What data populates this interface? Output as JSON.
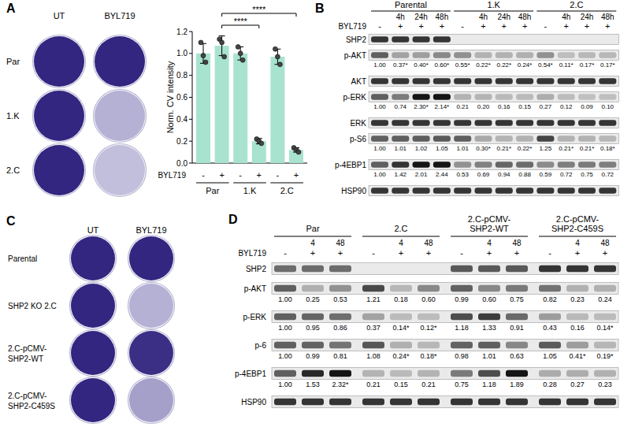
{
  "chart_data": {
    "type": "bar",
    "ylabel": "Norm. CV intensity",
    "xlabel": "BYL719",
    "categories": [
      "-",
      "+",
      "-",
      "+",
      "-",
      "+"
    ],
    "groups": [
      "Par",
      "1.K",
      "2.C"
    ],
    "values": [
      1.0,
      1.07,
      1.0,
      0.2,
      0.97,
      0.12
    ],
    "errors": [
      0.09,
      0.09,
      0.06,
      0.025,
      0.07,
      0.02
    ],
    "points": [
      [
        1.1,
        0.98,
        0.92
      ],
      [
        1.13,
        1.1,
        0.97
      ],
      [
        1.06,
        1.0,
        0.94
      ],
      [
        0.22,
        0.2,
        0.18
      ],
      [
        1.04,
        0.97,
        0.9
      ],
      [
        0.14,
        0.12,
        0.1
      ]
    ],
    "color": "#a8e3cf",
    "ylim": [
      0,
      1.2
    ],
    "yticks": [
      {
        "value": 0,
        "label": "0.0"
      },
      0.2,
      0.4,
      0.6,
      0.8,
      {
        "value": 1,
        "label": "1.0"
      },
      1.2
    ],
    "comparisons": [
      {
        "text": "****",
        "between": [
          1,
          3
        ]
      },
      {
        "text": "****",
        "between": [
          1,
          5
        ]
      }
    ]
  },
  "panels": {
    "A": {
      "label": "A",
      "columns": [
        "UT",
        "BYL719"
      ],
      "rows": [
        "Par",
        "1.K",
        "2.C"
      ],
      "cv_stain": [
        [
          1,
          1
        ],
        [
          1,
          0.2
        ],
        [
          1,
          0.12
        ]
      ]
    },
    "B": {
      "label": "B",
      "treatment": "BYL719",
      "groups": [
        {
          "name": [
            "Parental"
          ],
          "times": [
            null,
            "4h",
            "24h",
            "48h"
          ],
          "byl719": [
            "-",
            "+",
            "+",
            "+"
          ]
        },
        {
          "name": [
            "1.K"
          ],
          "times": [
            null,
            "4h",
            "24h",
            "48h"
          ],
          "byl719": [
            "-",
            "+",
            "+",
            "+"
          ]
        },
        {
          "name": [
            "2.C"
          ],
          "times": [
            null,
            "4h",
            "24h",
            "48h"
          ],
          "byl719": [
            "-",
            "+",
            "+",
            "+"
          ]
        }
      ],
      "rows": [
        {
          "name": "SHP2",
          "band_intensity": [
            1,
            1,
            1,
            1,
            0,
            0,
            0,
            0,
            0,
            0,
            0,
            0
          ]
        },
        {
          "name": "p-AKT",
          "values": [
            1.0,
            0.37,
            0.4,
            0.6,
            0.55,
            0.22,
            0.22,
            0.24,
            0.54,
            0.11,
            0.17,
            0.17
          ],
          "labels": [
            "1.00",
            "0.37*",
            "0.40*",
            "0.60*",
            "0.55*",
            "0.22*",
            "0.22*",
            "0.24*",
            "0.54*",
            "0.11*",
            "0.17*",
            "0.17*"
          ]
        },
        {
          "name": "AKT",
          "band_intensity": [
            1,
            1,
            1,
            1,
            1,
            1,
            1,
            1,
            1,
            1,
            1,
            1
          ]
        },
        {
          "name": "p-ERK",
          "values": [
            1.0,
            0.74,
            2.3,
            2.14,
            0.21,
            0.2,
            0.16,
            0.15,
            0.27,
            0.12,
            0.09,
            0.1
          ],
          "labels": [
            "1.00",
            "0.74",
            "2.30*",
            "2.14*",
            "0.21",
            "0.20",
            "0.16",
            "0.15",
            "0.27",
            "0.12",
            "0.09",
            "0.10"
          ]
        },
        {
          "name": "ERK",
          "band_intensity": [
            1,
            1,
            1,
            1,
            1,
            1,
            1,
            1,
            1,
            1,
            1,
            1
          ]
        },
        {
          "name": "p-S6",
          "values": [
            1.0,
            1.01,
            1.02,
            1.05,
            1.01,
            0.3,
            0.21,
            0.22,
            1.25,
            0.21,
            0.21,
            0.18
          ],
          "labels": [
            "1.00",
            "1.01",
            "1.02",
            "1.05",
            "1.01",
            "0.30*",
            "0.21*",
            "0.22*",
            "1.25",
            "0.21*",
            "0.21*",
            "0.18*"
          ]
        },
        {
          "name": "p-4EBP1",
          "values": [
            1.0,
            1.42,
            2.01,
            2.44,
            0.53,
            0.69,
            0.94,
            0.88,
            0.59,
            0.72,
            0.75,
            0.72
          ],
          "labels": [
            "1.00",
            "1.42",
            "2.01",
            "2.44",
            "0.53",
            "0.69",
            "0.94",
            "0.88",
            "0.59",
            "0.72",
            "0.75",
            "0.72"
          ]
        },
        {
          "name": "HSP90",
          "band_intensity": [
            1,
            1,
            1,
            1,
            1,
            1,
            1,
            1,
            1,
            1,
            1,
            1
          ]
        }
      ]
    },
    "C": {
      "label": "C",
      "columns": [
        "UT",
        "BYL719"
      ],
      "rows": [
        [
          "Parental"
        ],
        [
          "SHP2 KO 2.C"
        ],
        [
          "2.C-pCMV-",
          "SHP2-WT"
        ],
        [
          "2.C-pCMV-",
          "SHP2-C459S"
        ]
      ],
      "cv_stain": [
        [
          1,
          1
        ],
        [
          1,
          0.2
        ],
        [
          1,
          0.95
        ],
        [
          1,
          0.3
        ]
      ]
    },
    "D": {
      "label": "D",
      "treatment": "BYL719",
      "groups": [
        {
          "name": [
            "Par"
          ],
          "times": [
            null,
            "4",
            "48"
          ],
          "byl719": [
            "-",
            "+",
            "+"
          ]
        },
        {
          "name": [
            "2.C"
          ],
          "times": [
            null,
            "4",
            "48"
          ],
          "byl719": [
            "-",
            "+",
            "+"
          ]
        },
        {
          "name": [
            "2.C-pCMV-",
            "SHP2-WT"
          ],
          "times": [
            null,
            "4",
            "48"
          ],
          "byl719": [
            "-",
            "+",
            "+"
          ]
        },
        {
          "name": [
            "2.C-pCMV-",
            "SHP2-C459S"
          ],
          "times": [
            null,
            "4",
            "48"
          ],
          "byl719": [
            "-",
            "+",
            "+"
          ]
        }
      ],
      "rows": [
        {
          "name": "SHP2",
          "band_intensity": [
            0.7,
            0.7,
            0.7,
            0,
            0,
            0,
            0.8,
            0.8,
            0.8,
            1,
            1,
            1
          ]
        },
        {
          "name": "p-AKT",
          "values": [
            1.0,
            0.25,
            0.53,
            1.21,
            0.18,
            0.6,
            0.99,
            0.6,
            0.75,
            0.82,
            0.23,
            0.24
          ],
          "labels": [
            "1.00",
            "0.25",
            "0.53",
            "1.21",
            "0.18",
            "0.60",
            "0.99",
            "0.60",
            "0.75",
            "0.82",
            "0.23",
            "0.24"
          ]
        },
        {
          "name": "p-ERK",
          "values": [
            1.0,
            0.95,
            0.86,
            0.37,
            0.14,
            0.12,
            1.18,
            1.33,
            0.91,
            0.43,
            0.16,
            0.14
          ],
          "labels": [
            "1.00",
            "0.95",
            "0.86",
            "0.37",
            "0.14*",
            "0.12*",
            "1.18",
            "1.33",
            "0.91",
            "0.43",
            "0.16",
            "0.14*"
          ]
        },
        {
          "name": "p-6",
          "values": [
            1.0,
            0.99,
            0.81,
            1.08,
            0.24,
            0.18,
            0.98,
            1.01,
            0.63,
            1.05,
            0.41,
            0.19
          ],
          "labels": [
            "1.00",
            "0.99",
            "0.81",
            "1.08",
            "0.24*",
            "0.18*",
            "0.98",
            "1.01",
            "0.63",
            "1.05",
            "0.41*",
            "0.19*"
          ]
        },
        {
          "name": "p-4EBP1",
          "values": [
            1.0,
            1.53,
            2.32,
            0.21,
            0.15,
            0.21,
            0.75,
            1.18,
            1.89,
            0.28,
            0.27,
            0.23
          ],
          "labels": [
            "1.00",
            "1.53",
            "2.32*",
            "0.21",
            "0.15",
            "0.21",
            "0.75",
            "1.18",
            "1.89",
            "0.28",
            "0.27",
            "0.23"
          ]
        },
        {
          "name": "HSP90",
          "band_intensity": [
            1,
            1,
            1,
            1,
            1,
            1,
            1,
            1,
            1,
            1,
            1,
            1
          ]
        }
      ]
    }
  }
}
